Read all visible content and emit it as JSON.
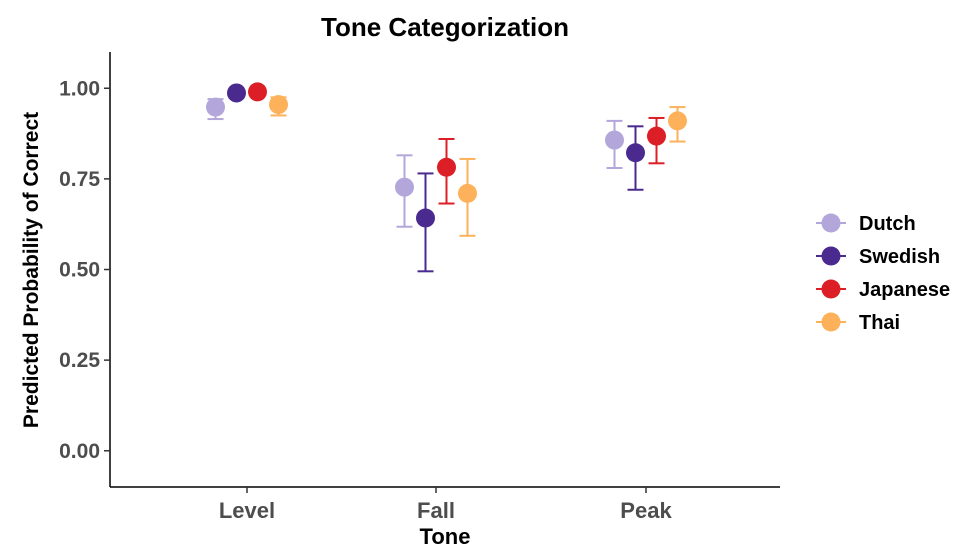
{
  "chart_data": {
    "type": "scatter",
    "title": "Tone Categorization",
    "xlabel": "Tone",
    "ylabel": "Predicted Probability of Correct",
    "categories": [
      "Level",
      "Fall",
      "Peak"
    ],
    "ylim": [
      -0.1,
      1.1
    ],
    "yticks": [
      "0.00",
      "0.25",
      "0.50",
      "0.75",
      "1.00"
    ],
    "ytick_values": [
      0,
      0.25,
      0.5,
      0.75,
      1.0
    ],
    "grid": false,
    "legend_position": "right",
    "error_bars": true,
    "series": [
      {
        "name": "Dutch",
        "color": "#B3A6DA",
        "values": [
          0.948,
          0.727,
          0.857
        ],
        "lower": [
          0.915,
          0.618,
          0.78
        ],
        "upper": [
          0.97,
          0.815,
          0.91
        ]
      },
      {
        "name": "Swedish",
        "color": "#4B2A8F",
        "values": [
          0.987,
          0.642,
          0.822
        ],
        "lower": [
          0.975,
          0.495,
          0.72
        ],
        "upper": [
          0.993,
          0.765,
          0.895
        ]
      },
      {
        "name": "Japanese",
        "color": "#DC1F26",
        "values": [
          0.99,
          0.782,
          0.868
        ],
        "lower": [
          0.98,
          0.682,
          0.793
        ],
        "upper": [
          0.996,
          0.86,
          0.918
        ]
      },
      {
        "name": "Thai",
        "color": "#FDB15A",
        "values": [
          0.955,
          0.71,
          0.91
        ],
        "lower": [
          0.925,
          0.593,
          0.853
        ],
        "upper": [
          0.975,
          0.805,
          0.948
        ]
      }
    ]
  }
}
